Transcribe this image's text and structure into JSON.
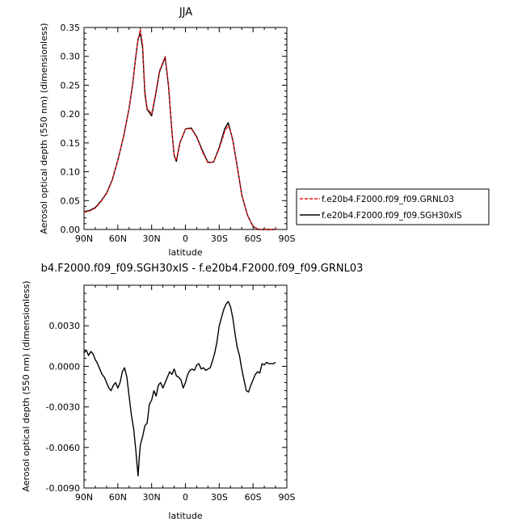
{
  "chart_data": [
    {
      "type": "line",
      "title": "JJA",
      "xlabel": "latitude",
      "ylabel": "Aerosol optical depth (550 nm) (dimensionless)",
      "xlim": [
        90,
        -90
      ],
      "ylim": [
        0,
        0.35
      ],
      "x_ticks": [
        90,
        60,
        30,
        0,
        -30,
        -60,
        -90
      ],
      "x_tick_labels": [
        "90N",
        "60N",
        "30N",
        "0",
        "30S",
        "60S",
        "90S"
      ],
      "y_ticks": [
        0,
        0.05,
        0.1,
        0.15,
        0.2,
        0.25,
        0.3,
        0.35
      ],
      "y_tick_labels": [
        "0.00",
        "0.05",
        "0.10",
        "0.15",
        "0.20",
        "0.25",
        "0.30",
        "0.35"
      ],
      "legend": {
        "position": "right",
        "entries": [
          "f.e20b4.F2000.f09_f09.GRNL03",
          "f.e20b4.F2000.f09_f09.SGH30xIS"
        ]
      },
      "series": [
        {
          "name": "f.e20b4.F2000.f09_f09.GRNL03",
          "color": "#e41a1c",
          "dash": "dashed",
          "x": [
            90,
            85,
            80,
            75,
            70,
            65,
            60,
            55,
            50,
            47,
            44,
            42,
            40,
            38,
            36,
            34,
            30,
            26,
            23,
            20,
            18,
            15,
            12,
            10,
            8,
            5,
            0,
            -5,
            -10,
            -15,
            -20,
            -25,
            -30,
            -35,
            -38,
            -40,
            -42,
            -45,
            -48,
            -50,
            -55,
            -60,
            -63,
            -65,
            -68,
            -70,
            -75,
            -80
          ],
          "y": [
            0.03,
            0.032,
            0.037,
            0.048,
            0.062,
            0.085,
            0.12,
            0.16,
            0.21,
            0.25,
            0.3,
            0.33,
            0.347,
            0.32,
            0.24,
            0.21,
            0.2,
            0.24,
            0.275,
            0.29,
            0.3,
            0.25,
            0.17,
            0.128,
            0.12,
            0.15,
            0.174,
            0.175,
            0.16,
            0.135,
            0.115,
            0.117,
            0.14,
            0.17,
            0.18,
            0.17,
            0.155,
            0.12,
            0.085,
            0.06,
            0.025,
            0.005,
            0.002,
            0.0,
            0.0,
            0.0,
            0.0,
            0.0
          ]
        },
        {
          "name": "f.e20b4.F2000.f09_f09.SGH30xIS",
          "color": "#000000",
          "dash": "solid",
          "x": [
            90,
            85,
            80,
            75,
            70,
            65,
            60,
            55,
            50,
            47,
            44,
            42,
            40,
            38,
            36,
            34,
            30,
            26,
            23,
            20,
            18,
            15,
            12,
            10,
            8,
            5,
            0,
            -5,
            -10,
            -15,
            -20,
            -25,
            -30,
            -35,
            -38,
            -40,
            -42,
            -45,
            -48,
            -50,
            -55,
            -60,
            -63,
            -65,
            -68,
            -70,
            -75,
            -80
          ],
          "y": [
            0.031,
            0.033,
            0.038,
            0.049,
            0.063,
            0.086,
            0.12,
            0.16,
            0.21,
            0.25,
            0.3,
            0.33,
            0.34,
            0.315,
            0.235,
            0.208,
            0.197,
            0.238,
            0.273,
            0.288,
            0.298,
            0.248,
            0.169,
            0.128,
            0.118,
            0.149,
            0.174,
            0.176,
            0.161,
            0.137,
            0.116,
            0.117,
            0.142,
            0.175,
            0.185,
            0.17,
            0.155,
            0.12,
            0.085,
            0.06,
            0.025,
            0.005,
            0.002,
            0.0,
            0.0,
            0.0,
            0.0,
            0.0
          ]
        }
      ]
    },
    {
      "type": "line",
      "title": "b4.F2000.f09_f09.SGH30xIS - f.e20b4.F2000.f09_f09.GRNL03",
      "xlabel": "latitude",
      "ylabel": "Aerosol optical depth (550 nm) (dimensionless)",
      "xlim": [
        90,
        -90
      ],
      "ylim": [
        -0.009,
        0.006
      ],
      "x_ticks": [
        90,
        60,
        30,
        0,
        -30,
        -60,
        -90
      ],
      "x_tick_labels": [
        "90N",
        "60N",
        "30N",
        "0",
        "30S",
        "60S",
        "90S"
      ],
      "y_ticks": [
        -0.009,
        -0.006,
        -0.003,
        0.0,
        0.003
      ],
      "y_tick_labels": [
        "-0.0090",
        "-0.0060",
        "-0.0030",
        "0.0000",
        "0.0030"
      ],
      "series": [
        {
          "color": "#000000",
          "x": [
            90,
            88,
            86,
            84,
            82,
            80,
            78,
            76,
            74,
            72,
            70,
            68,
            66,
            64,
            62,
            60,
            58,
            56,
            54,
            52,
            50,
            48,
            46,
            44,
            43,
            42,
            41,
            40,
            38,
            36,
            34,
            32,
            30,
            28,
            26,
            24,
            22,
            20,
            18,
            16,
            14,
            12,
            10,
            8,
            6,
            4,
            2,
            0,
            -2,
            -4,
            -6,
            -8,
            -10,
            -12,
            -14,
            -16,
            -18,
            -20,
            -22,
            -24,
            -26,
            -28,
            -30,
            -32,
            -34,
            -36,
            -38,
            -40,
            -42,
            -44,
            -46,
            -48,
            -50,
            -52,
            -54,
            -56,
            -58,
            -60,
            -62,
            -64,
            -66,
            -68,
            -70,
            -72,
            -74,
            -76,
            -78,
            -80
          ],
          "y": [
            0.001,
            0.0012,
            0.0008,
            0.0011,
            0.0009,
            0.0005,
            0.0002,
            -0.0002,
            -0.0006,
            -0.0008,
            -0.0012,
            -0.0016,
            -0.0018,
            -0.0014,
            -0.0012,
            -0.0016,
            -0.0012,
            -0.0004,
            -0.0001,
            -0.0008,
            -0.0022,
            -0.0036,
            -0.0046,
            -0.0062,
            -0.0072,
            -0.0081,
            -0.0068,
            -0.0058,
            -0.0052,
            -0.0044,
            -0.0042,
            -0.0028,
            -0.0025,
            -0.0018,
            -0.0022,
            -0.0014,
            -0.0012,
            -0.0016,
            -0.0012,
            -0.0008,
            -0.0004,
            -0.0006,
            -0.0002,
            -0.0007,
            -0.0008,
            -0.001,
            -0.0016,
            -0.0012,
            -0.0006,
            -0.0003,
            -0.0002,
            -0.0003,
            0.0001,
            0.0002,
            -0.0002,
            -0.0001,
            -0.0003,
            -0.0002,
            -0.0001,
            0.0004,
            0.001,
            0.0018,
            0.003,
            0.0036,
            0.0042,
            0.0046,
            0.0048,
            0.0044,
            0.0036,
            0.0024,
            0.0014,
            0.0008,
            -0.0002,
            -0.001,
            -0.0018,
            -0.0019,
            -0.0014,
            -0.001,
            -0.0006,
            -0.0004,
            -0.0005,
            0.0002,
            0.0001,
            0.0003,
            0.0002,
            0.0002,
            0.0002,
            0.0003
          ]
        }
      ]
    }
  ]
}
